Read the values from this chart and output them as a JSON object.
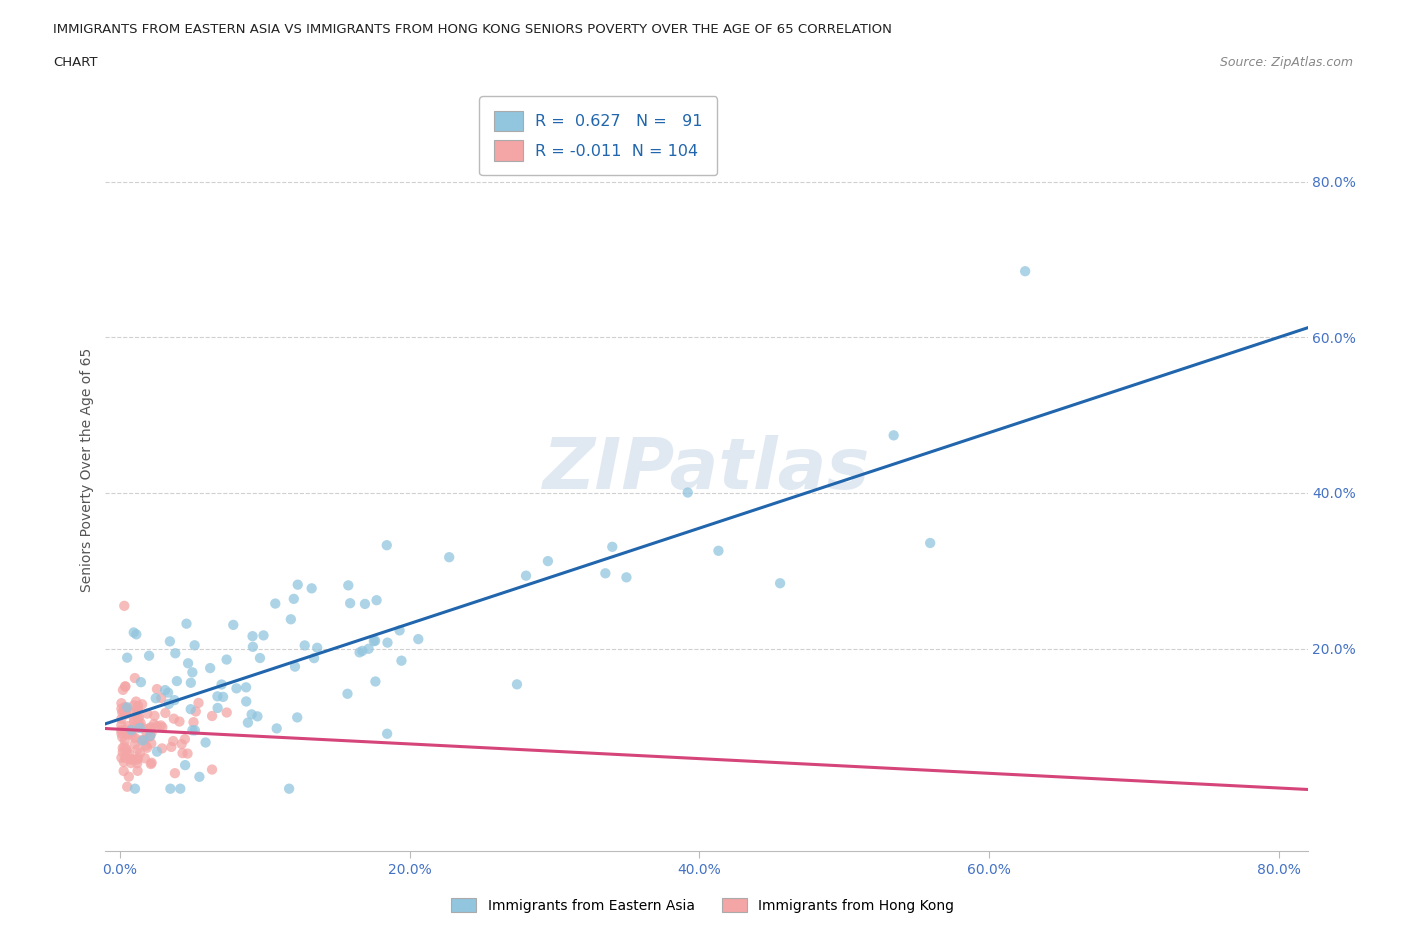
{
  "title_line1": "IMMIGRANTS FROM EASTERN ASIA VS IMMIGRANTS FROM HONG KONG SENIORS POVERTY OVER THE AGE OF 65 CORRELATION",
  "title_line2": "CHART",
  "source_text": "Source: ZipAtlas.com",
  "ylabel": "Seniors Poverty Over the Age of 65",
  "xlim": [
    -0.01,
    0.82
  ],
  "ylim": [
    -0.06,
    0.92
  ],
  "x_tick_labels": [
    "0.0%",
    "20.0%",
    "40.0%",
    "60.0%",
    "80.0%"
  ],
  "x_tick_values": [
    0.0,
    0.2,
    0.4,
    0.6,
    0.8
  ],
  "y_tick_labels": [
    "20.0%",
    "40.0%",
    "60.0%",
    "80.0%"
  ],
  "y_tick_values": [
    0.2,
    0.4,
    0.6,
    0.8
  ],
  "watermark": "ZIPatlas",
  "blue_color": "#92c5de",
  "blue_line_color": "#2166ac",
  "pink_color": "#f4a5a5",
  "pink_line_color": "#d6457a",
  "legend1_R": "0.627",
  "legend1_N": "91",
  "legend2_R": "-0.011",
  "legend2_N": "104",
  "legend_label1": "Immigrants from Eastern Asia",
  "legend_label2": "Immigrants from Hong Kong",
  "blue_R": 0.627,
  "blue_N": 91,
  "pink_R": -0.011,
  "pink_N": 104,
  "grid_color": "#d0d0d0",
  "background_color": "#ffffff",
  "title_color": "#222222",
  "tick_label_color": "#4472c4"
}
